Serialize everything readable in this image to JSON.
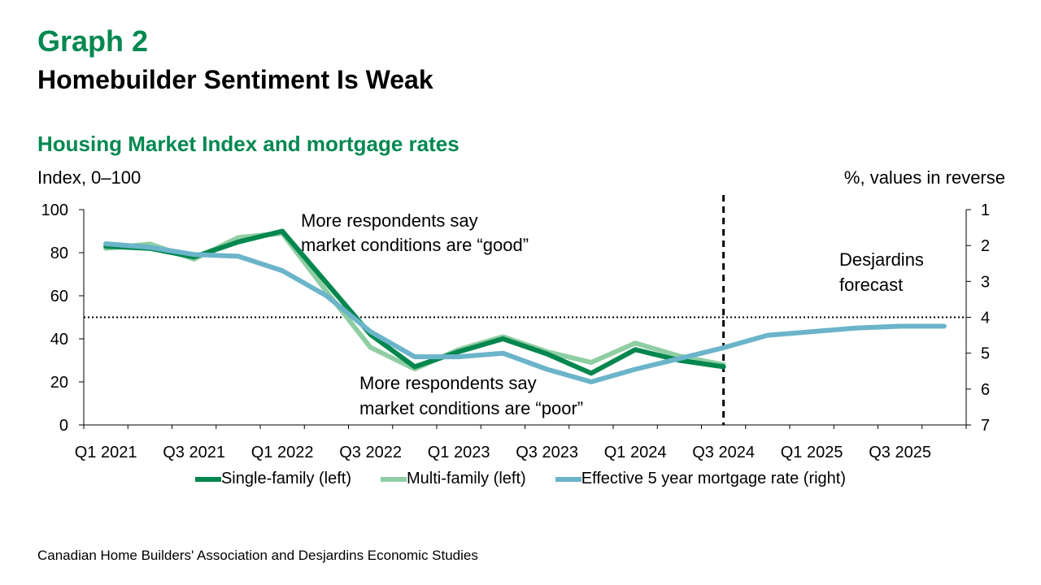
{
  "header": {
    "graph_number": "Graph 2",
    "headline": "Homebuilder Sentiment Is Weak",
    "subtitle": "Housing Market Index and mortgage rates"
  },
  "source": "Canadian Home Builders' Association and Desjardins Economic Studies",
  "chart_data": {
    "type": "line",
    "ylabel_left": "Index, 0–100",
    "ylabel_right": "%, values in reverse",
    "ylim_left": [
      0,
      100
    ],
    "yticks_left": [
      "0",
      "20",
      "40",
      "60",
      "80",
      "100"
    ],
    "ylim_right": [
      7,
      1
    ],
    "right_axis_reversed": true,
    "yticks_right": [
      "1",
      "2",
      "3",
      "4",
      "5",
      "6",
      "7"
    ],
    "categories": [
      "Q1 2021",
      "Q2 2021",
      "Q3 2021",
      "Q4 2021",
      "Q1 2022",
      "Q2 2022",
      "Q3 2022",
      "Q4 2022",
      "Q1 2023",
      "Q2 2023",
      "Q3 2023",
      "Q4 2023",
      "Q1 2024",
      "Q2 2024",
      "Q3 2024",
      "Q4 2024",
      "Q1 2025",
      "Q2 2025",
      "Q3 2025",
      "Q4 2025"
    ],
    "xtick_labels": [
      "Q1 2021",
      "Q3 2021",
      "Q1 2022",
      "Q3 2022",
      "Q1 2023",
      "Q3 2023",
      "Q1 2024",
      "Q3 2024",
      "Q1 2025",
      "Q3 2025"
    ],
    "series": [
      {
        "name": "Single-family (left)",
        "axis": "left",
        "color": "#00874E",
        "values": [
          83,
          82,
          78,
          85,
          90,
          66,
          42,
          27,
          34,
          40,
          33,
          24,
          35,
          30,
          27,
          null,
          null,
          null,
          null,
          null
        ]
      },
      {
        "name": "Multi-family (left)",
        "axis": "left",
        "color": "#8FCEA3",
        "values": [
          82,
          84,
          77,
          87,
          89,
          62,
          36,
          26,
          35,
          41,
          34,
          29,
          38,
          32,
          28,
          null,
          null,
          null,
          null,
          null
        ]
      },
      {
        "name": "Effective 5 year mortgage rate (right)",
        "axis": "right",
        "color": "#6BB4CA",
        "values": [
          1.95,
          2.05,
          2.25,
          2.3,
          2.7,
          3.4,
          4.4,
          5.1,
          5.1,
          5.0,
          5.45,
          5.8,
          5.45,
          5.15,
          4.85,
          4.5,
          4.4,
          4.3,
          4.25,
          4.25
        ]
      }
    ],
    "reference_line": {
      "axis": "left",
      "value": 50,
      "style": "dotted"
    },
    "forecast_divider": {
      "category": "Q3 2024",
      "style": "dashed"
    },
    "annotations": {
      "good": [
        "More respondents say",
        "market conditions are “good”"
      ],
      "poor": [
        "More respondents say",
        "market conditions are “poor”"
      ],
      "forecast": [
        "Desjardins",
        "forecast"
      ]
    },
    "legend_position": "bottom",
    "grid": false
  }
}
